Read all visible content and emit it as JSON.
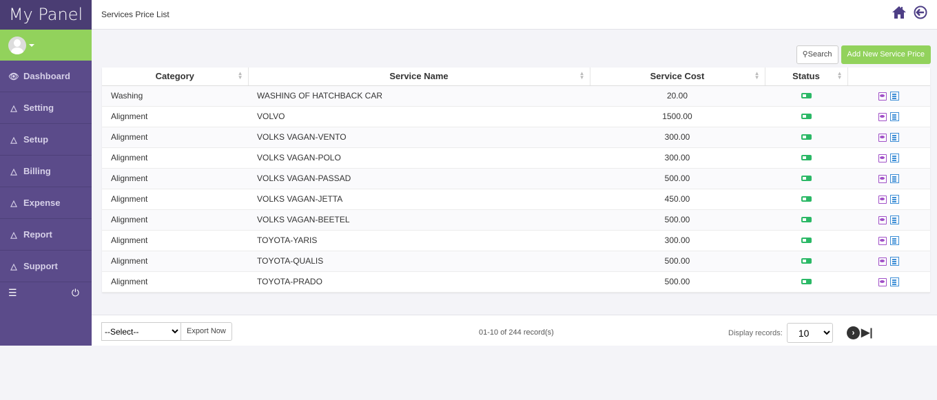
{
  "brand": "My Panel",
  "sidebar": {
    "items": [
      {
        "label": "Dashboard",
        "icon": "eye-icon"
      },
      {
        "label": "Setting",
        "icon": "flask-icon"
      },
      {
        "label": "Setup",
        "icon": "flask-icon"
      },
      {
        "label": "Billing",
        "icon": "flask-icon"
      },
      {
        "label": "Expense",
        "icon": "flask-icon"
      },
      {
        "label": "Report",
        "icon": "flask-icon"
      },
      {
        "label": "Support",
        "icon": "flask-icon"
      }
    ]
  },
  "header": {
    "title": "Services Price List"
  },
  "toolbar": {
    "search": "Search",
    "add": "Add New Service Price"
  },
  "table": {
    "headers": [
      "Category",
      "Service Name",
      "Service Cost",
      "Status"
    ],
    "rows": [
      [
        "Washing",
        "WASHING OF HATCHBACK CAR",
        "20.00"
      ],
      [
        "Alignment",
        "VOLVO",
        "1500.00"
      ],
      [
        "Alignment",
        "VOLKS VAGAN-VENTO",
        "300.00"
      ],
      [
        "Alignment",
        "VOLKS VAGAN-POLO",
        "300.00"
      ],
      [
        "Alignment",
        "VOLKS VAGAN-PASSAD",
        "500.00"
      ],
      [
        "Alignment",
        "VOLKS VAGAN-JETTA",
        "450.00"
      ],
      [
        "Alignment",
        "VOLKS VAGAN-BEETEL",
        "500.00"
      ],
      [
        "Alignment",
        "TOYOTA-YARIS",
        "300.00"
      ],
      [
        "Alignment",
        "TOYOTA-QUALIS",
        "500.00"
      ],
      [
        "Alignment",
        "TOYOTA-PRADO",
        "500.00"
      ]
    ]
  },
  "footer": {
    "bulk_select": "--Select--",
    "export": "Export Now",
    "records": "01-10 of 244 record(s)",
    "display_label": "Display records:",
    "display_value": "10"
  },
  "colors": {
    "sidebar": "#5b4b8a",
    "accent": "#92d25c",
    "status_on": "#2bb866"
  }
}
